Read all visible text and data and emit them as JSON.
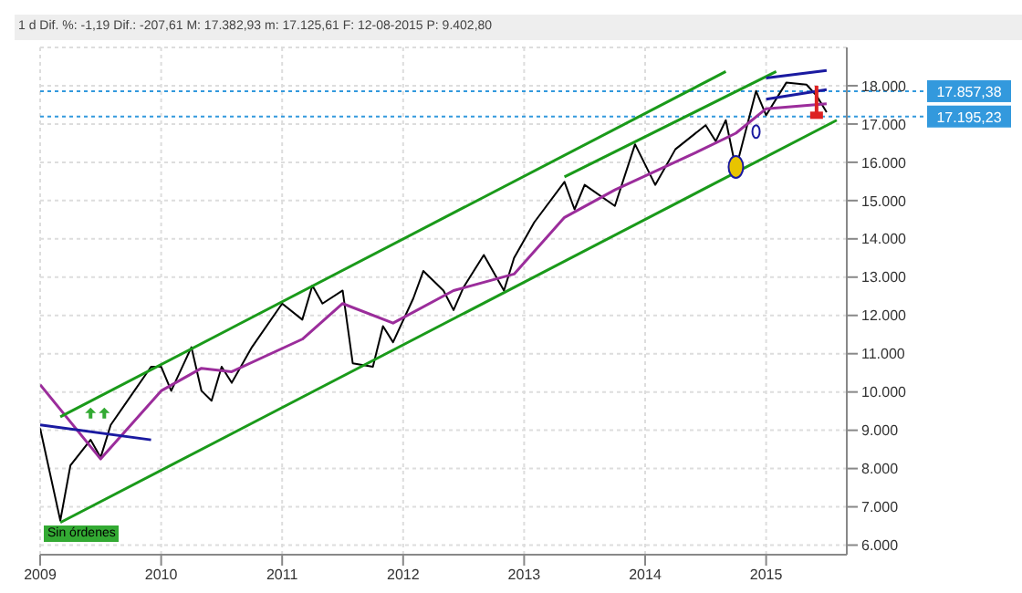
{
  "chart_data": {
    "type": "line",
    "title": "1 d  Dif. %: -1,19  Dif.: -207,61  M: 17.382,93  m: 17.125,61  F: 12-08-2015  P: 9.402,80",
    "series": [
      {
        "color": "#000000",
        "x": [
          "2009-01",
          "2009-03",
          "2009-04",
          "2009-06",
          "2009-07",
          "2009-08",
          "2009-10",
          "2009-12",
          "2010-01",
          "2010-02",
          "2010-04",
          "2010-05",
          "2010-06",
          "2010-07",
          "2010-08",
          "2010-10",
          "2011-01",
          "2011-03",
          "2011-04",
          "2011-05",
          "2011-07",
          "2011-08",
          "2011-10",
          "2011-11",
          "2011-12",
          "2012-02",
          "2012-03",
          "2012-05",
          "2012-06",
          "2012-07",
          "2012-09",
          "2012-11",
          "2012-12",
          "2013-02",
          "2013-05",
          "2013-06",
          "2013-07",
          "2013-10",
          "2013-12",
          "2014-02",
          "2014-04",
          "2014-07",
          "2014-08",
          "2014-09",
          "2014-10",
          "2014-12",
          "2015-01",
          "2015-03",
          "2015-05",
          "2015-06",
          "2015-07"
        ],
        "values": [
          9050,
          6640,
          8080,
          8750,
          8290,
          9140,
          9900,
          10660,
          10660,
          10030,
          11170,
          10030,
          9770,
          10660,
          10240,
          11170,
          12310,
          11890,
          12780,
          12310,
          12650,
          10750,
          10660,
          11720,
          11300,
          12440,
          13160,
          12650,
          12140,
          12740,
          13580,
          12650,
          13500,
          14430,
          15490,
          14770,
          15410,
          14860,
          16470,
          15410,
          16340,
          16970,
          16550,
          17100,
          15830,
          17860,
          17230,
          18080,
          18030,
          17740,
          17310
        ]
      },
      {
        "color": "#9b2d9b",
        "x": [
          "2009-01",
          "2009-07",
          "2010-01",
          "2010-05",
          "2010-08",
          "2011-03",
          "2011-07",
          "2011-12",
          "2012-06",
          "2012-12",
          "2013-05",
          "2013-10",
          "2014-06",
          "2014-10",
          "2015-01",
          "2015-07"
        ],
        "values": [
          10190,
          8250,
          10030,
          10620,
          10530,
          11380,
          12310,
          11800,
          12650,
          13080,
          14560,
          15280,
          16250,
          16760,
          17400,
          17530
        ]
      },
      {
        "color": "#1a9a1a",
        "x": [
          "2009-03",
          "2014-09"
        ],
        "values": [
          9350,
          18370
        ]
      },
      {
        "color": "#1a9a1a",
        "x": [
          "2009-03",
          "2015-08"
        ],
        "values": [
          6590,
          17100
        ]
      },
      {
        "color": "#1a9a1a",
        "x": [
          "2013-05",
          "2015-02"
        ],
        "values": [
          15620,
          18370
        ]
      },
      {
        "color": "#1a1aa0",
        "x": [
          "2009-01",
          "2009-12"
        ],
        "values": [
          9140,
          8750
        ]
      },
      {
        "color": "#1a1aa0",
        "x": [
          "2015-01",
          "2015-07"
        ],
        "values": [
          18200,
          18400
        ]
      },
      {
        "color": "#1a1aa0",
        "x": [
          "2015-01",
          "2015-07"
        ],
        "values": [
          17650,
          17900
        ]
      }
    ],
    "xlim": [
      "2009-01",
      "2015-09"
    ],
    "xticks": [
      {
        "value": "2009-01",
        "label": "2009"
      },
      {
        "value": "2010-01",
        "label": "2010"
      },
      {
        "value": "2011-01",
        "label": "2011"
      },
      {
        "value": "2012-01",
        "label": "2012"
      },
      {
        "value": "2013-01",
        "label": "2013"
      },
      {
        "value": "2014-01",
        "label": "2014"
      },
      {
        "value": "2015-01",
        "label": "2015"
      }
    ],
    "ylim": [
      5750,
      19000
    ],
    "yticks": [
      {
        "value": 6000,
        "label": "6.000"
      },
      {
        "value": 7000,
        "label": "7.000"
      },
      {
        "value": 8000,
        "label": "8.000"
      },
      {
        "value": 9000,
        "label": "9.000"
      },
      {
        "value": 10000,
        "label": "10.000"
      },
      {
        "value": 11000,
        "label": "11.000"
      },
      {
        "value": 12000,
        "label": "12.000"
      },
      {
        "value": 13000,
        "label": "13.000"
      },
      {
        "value": 14000,
        "label": "14.000"
      },
      {
        "value": 15000,
        "label": "15.000"
      },
      {
        "value": 16000,
        "label": "16.000"
      },
      {
        "value": 17000,
        "label": "17.000"
      },
      {
        "value": 18000,
        "label": "18.000"
      }
    ],
    "ref_lines": [
      {
        "axis": "y",
        "value": 17857.38,
        "label": "17.857,38",
        "color": "#3399dd",
        "line_style": "dotted"
      },
      {
        "axis": "y",
        "value": 17195.23,
        "label": "17.195,23",
        "color": "#3399dd",
        "line_style": "dotted"
      }
    ],
    "annotations": [
      "Sin órdenes"
    ],
    "grid": true,
    "marker": "none",
    "line_style": "solid"
  }
}
